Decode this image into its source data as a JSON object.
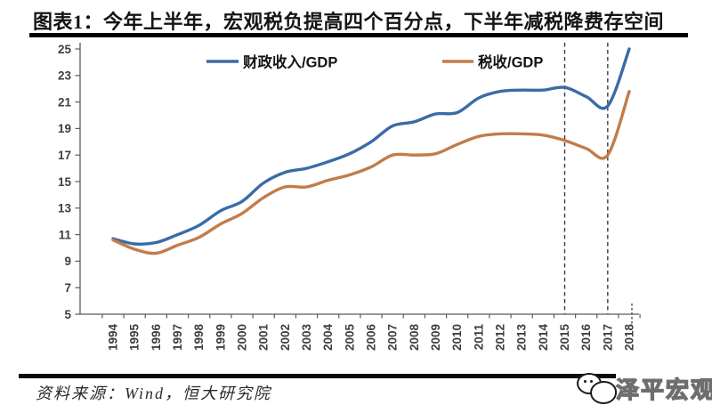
{
  "title": "图表1：今年上半年，宏观税负提高四个百分点，下半年减税降费存空间",
  "source_note": "资料来源：Wind，恒大研究院",
  "logo_text": "泽平宏观",
  "colors": {
    "series_fiscal": "#3A6BA5",
    "series_tax": "#C27C4A",
    "axis": "#5a5a5a",
    "tick_label": "#3f3f3f",
    "dashed_line": "#3a3a3a",
    "legend_text": "#141414",
    "divider": "#000000"
  },
  "chart_data": {
    "type": "line",
    "title": "图表1：今年上半年，宏观税负提高四个百分点，下半年减税降费存空间",
    "x": [
      1994,
      1995,
      1996,
      1997,
      1998,
      1999,
      2000,
      2001,
      2002,
      2003,
      2004,
      2005,
      2006,
      2007,
      2008,
      2009,
      2010,
      2011,
      2012,
      2013,
      2014,
      2015,
      2016,
      2017,
      2018
    ],
    "series": [
      {
        "name": "财政收入/GDP",
        "color": "#3A6BA5",
        "values": [
          10.7,
          10.3,
          10.4,
          11.0,
          11.7,
          12.8,
          13.5,
          14.9,
          15.7,
          16.0,
          16.5,
          17.1,
          18.0,
          19.2,
          19.5,
          20.1,
          20.2,
          21.3,
          21.8,
          21.9,
          21.9,
          22.1,
          21.4,
          20.7,
          25.0
        ]
      },
      {
        "name": "税收/GDP",
        "color": "#C27C4A",
        "values": [
          10.6,
          9.9,
          9.6,
          10.2,
          10.8,
          11.8,
          12.6,
          13.8,
          14.6,
          14.6,
          15.1,
          15.5,
          16.1,
          17.0,
          17.0,
          17.1,
          17.8,
          18.4,
          18.6,
          18.6,
          18.5,
          18.1,
          17.5,
          17.0,
          21.8
        ]
      }
    ],
    "xlabel": "",
    "ylabel": "",
    "ylim": [
      5,
      25
    ],
    "ytick_step": 2,
    "yticks": [
      5,
      7,
      9,
      11,
      13,
      15,
      17,
      19,
      21,
      23,
      25
    ],
    "grid": false,
    "legend_position": "top-inside",
    "line_style": "smooth",
    "annotations": {
      "dashed_vlines_years": [
        2015,
        2017
      ],
      "dotted_mark_year": 2018
    }
  }
}
